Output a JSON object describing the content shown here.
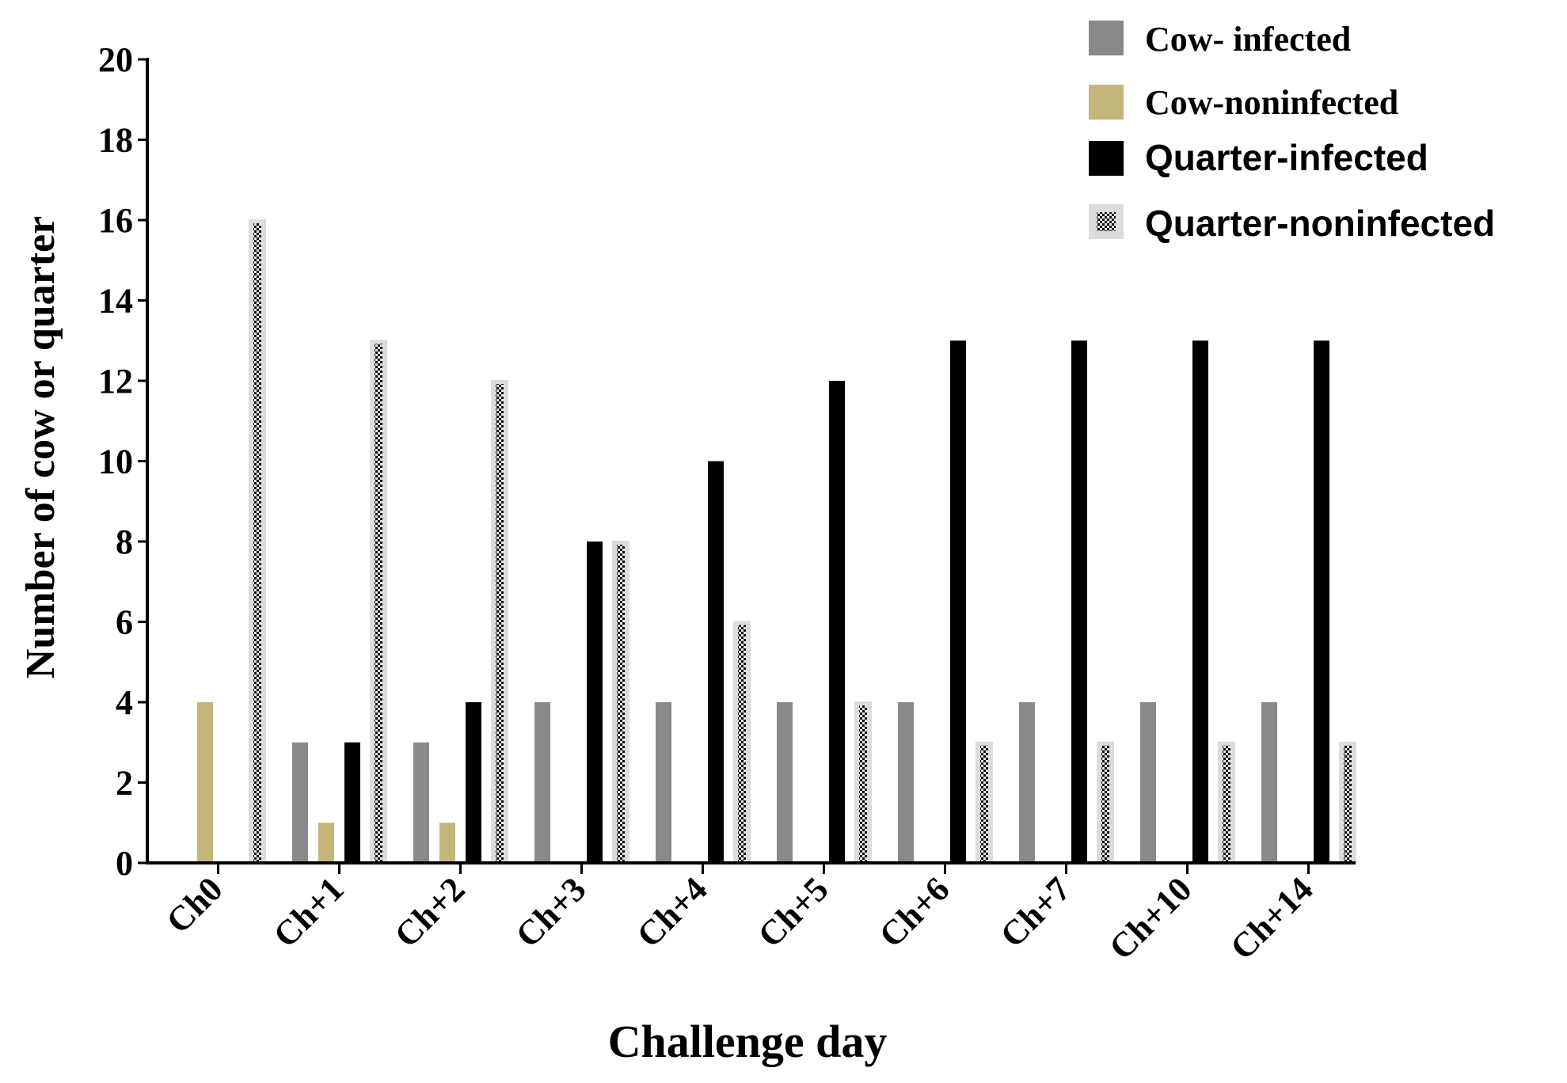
{
  "chart_data": {
    "type": "bar",
    "title": "",
    "xlabel": "Challenge day",
    "ylabel": "Number of cow or quarter",
    "ylim": [
      0,
      20
    ],
    "yticks": [
      "0",
      "2",
      "4",
      "6",
      "8",
      "10",
      "12",
      "14",
      "16",
      "18",
      "20"
    ],
    "categories": [
      "Ch0",
      "Ch+1",
      "Ch+2",
      "Ch+3",
      "Ch+4",
      "Ch+5",
      "Ch+6",
      "Ch+7",
      "Ch+10",
      "Ch+14"
    ],
    "legend_position": "top-right",
    "series": [
      {
        "name": "Cow- infected",
        "color": "#898989",
        "pattern": "solid",
        "values": [
          0,
          3,
          3,
          4,
          4,
          4,
          4,
          4,
          4,
          4
        ]
      },
      {
        "name": "Cow-noninfected",
        "color": "#c4b57a",
        "pattern": "solid",
        "values": [
          4,
          1,
          1,
          0,
          0,
          0,
          0,
          0,
          0,
          0
        ]
      },
      {
        "name": "Quarter-infected",
        "color": "#000000",
        "pattern": "solid",
        "values": [
          0,
          3,
          4,
          8,
          10,
          12,
          13,
          13,
          13,
          13
        ]
      },
      {
        "name": "Quarter-noninfected",
        "color": "#dcdcdc",
        "pattern": "checker",
        "values": [
          16,
          13,
          12,
          8,
          6,
          4,
          3,
          3,
          3,
          3
        ]
      }
    ]
  }
}
